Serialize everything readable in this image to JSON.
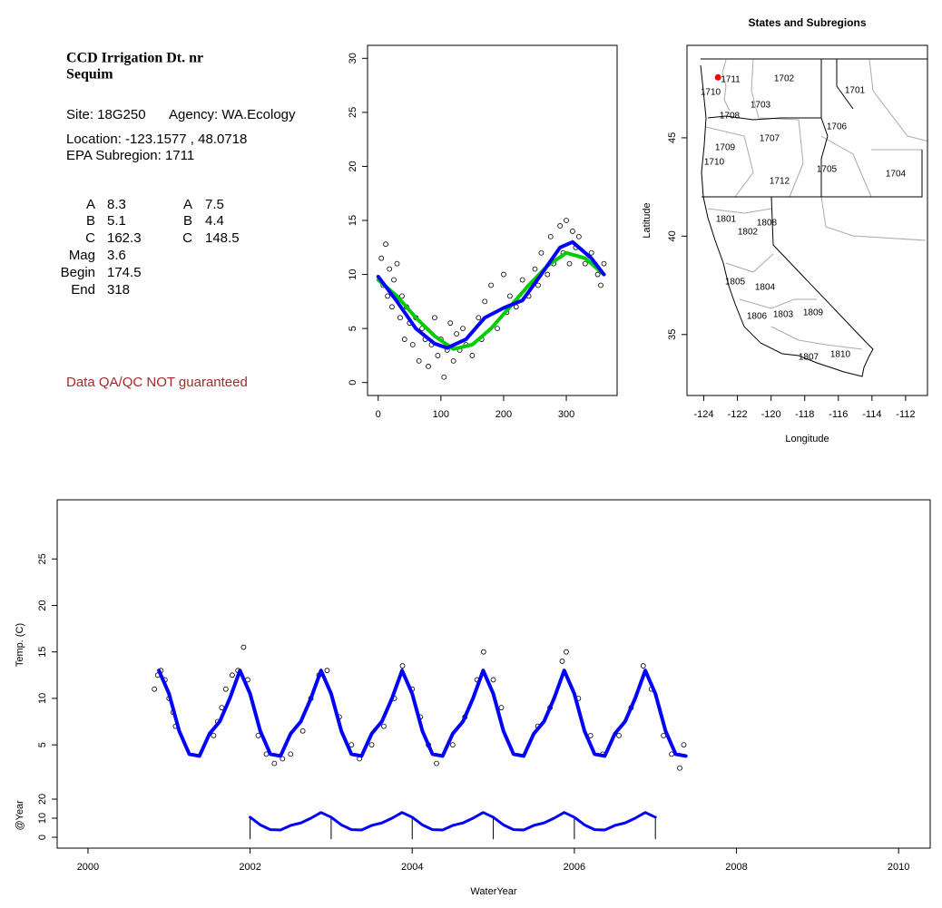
{
  "info": {
    "title": [
      "CCD Irrigation Dt. nr",
      "Sequim"
    ],
    "site": "Site: 18G250",
    "agency": "Agency: WA.Ecology",
    "location": "Location: -123.1577 , 48.0718",
    "subregion": "EPA Subregion: 1711",
    "params": [
      [
        "A",
        "8.3",
        "A",
        "7.5"
      ],
      [
        "B",
        "5.1",
        "B",
        "4.4"
      ],
      [
        "C",
        "162.3",
        "C",
        "148.5"
      ],
      [
        "Mag",
        "3.6"
      ],
      [
        "Begin",
        "174.5"
      ],
      [
        "End",
        "318"
      ]
    ],
    "note": "Data QA/QC NOT guaranteed"
  },
  "chart_data": [
    {
      "type": "scatter",
      "x": [
        5,
        8,
        12,
        15,
        18,
        22,
        25,
        30,
        35,
        38,
        42,
        45,
        50,
        55,
        60,
        65,
        70,
        75,
        80,
        85,
        90,
        95,
        100,
        105,
        110,
        115,
        120,
        125,
        130,
        135,
        140,
        150,
        160,
        165,
        170,
        180,
        190,
        200,
        205,
        210,
        220,
        230,
        240,
        250,
        255,
        260,
        270,
        275,
        280,
        290,
        295,
        300,
        305,
        310,
        315,
        320,
        330,
        340,
        350,
        355,
        360
      ],
      "values": [
        11.5,
        9,
        12.8,
        8,
        10.5,
        7,
        9.5,
        11,
        6,
        8,
        4,
        7,
        5.5,
        3.5,
        6,
        2,
        5,
        4,
        1.5,
        3.5,
        6,
        2.5,
        4,
        0.5,
        3,
        5.5,
        2,
        4.5,
        3,
        5,
        3.5,
        2.5,
        6,
        4,
        7.5,
        9,
        5,
        10,
        6.5,
        8,
        7,
        9.5,
        8,
        10.5,
        9,
        12,
        10,
        13.5,
        11,
        14.5,
        12,
        15,
        11,
        14,
        12.5,
        13.5,
        11,
        12,
        10,
        9,
        11
      ],
      "series": [
        {
          "color": "#00cc00",
          "x": [
            0,
            30,
            60,
            90,
            120,
            150,
            180,
            210,
            240,
            270,
            300,
            330,
            360
          ],
          "values": [
            9.5,
            8.0,
            6.0,
            4.3,
            3.1,
            3.5,
            5.0,
            7.0,
            9.0,
            10.8,
            12.0,
            11.5,
            10.0
          ]
        },
        {
          "color": "#0000ff",
          "x": [
            0,
            30,
            60,
            90,
            110,
            140,
            170,
            200,
            230,
            260,
            290,
            310,
            340,
            360
          ],
          "values": [
            9.8,
            7.5,
            5.0,
            3.6,
            3.2,
            4.0,
            6.0,
            6.9,
            7.6,
            10,
            12.5,
            13,
            11.5,
            10
          ]
        }
      ],
      "xlim": [
        -17,
        381
      ],
      "ylim": [
        -1.2,
        31.2
      ],
      "xticks": [
        0,
        100,
        200,
        300
      ],
      "yticks": [
        0,
        5,
        10,
        15,
        20,
        25,
        30
      ]
    },
    {
      "type": "map",
      "title": "States and Subregions",
      "xlabel": "Longitude",
      "ylabel": "Latitude",
      "xlim": [
        -125,
        -110.7
      ],
      "ylim": [
        31.9,
        49.7
      ],
      "xticks": [
        -124,
        -122,
        -120,
        -118,
        -116,
        -114,
        -112
      ],
      "yticks": [
        35,
        40,
        45
      ],
      "point": {
        "x": -123.1577,
        "y": 48.0718,
        "color": "#ff0000"
      },
      "region_labels": [
        "1711",
        "1702",
        "1701",
        "1710",
        "1703",
        "1708",
        "1706",
        "1707",
        "1709",
        "1710",
        "1705",
        "1704",
        "1712",
        "1801",
        "1808",
        "1802",
        "1805",
        "1804",
        "1809",
        "1803",
        "1806",
        "1810",
        "1807"
      ]
    },
    {
      "type": "timeseries",
      "ylabel": "Temp. (C)",
      "xlim": [
        1999.62,
        2010.39
      ],
      "ylim": [
        1.5,
        30
      ],
      "yticks": [
        5,
        10,
        15,
        20,
        25
      ],
      "x": [
        2000.82,
        2000.86,
        2000.9,
        2000.95,
        2001.0,
        2001.05,
        2001.08,
        2001.55,
        2001.6,
        2001.65,
        2001.7,
        2001.78,
        2001.85,
        2001.92,
        2001.97,
        2002.1,
        2002.2,
        2002.3,
        2002.4,
        2002.5,
        2002.65,
        2002.75,
        2002.85,
        2002.95,
        2003.1,
        2003.25,
        2003.35,
        2003.5,
        2003.65,
        2003.78,
        2003.88,
        2004.0,
        2004.1,
        2004.2,
        2004.3,
        2004.5,
        2004.65,
        2004.8,
        2004.88,
        2005.0,
        2005.1,
        2005.55,
        2005.7,
        2005.85,
        2005.9,
        2006.05,
        2006.2,
        2006.35,
        2006.55,
        2006.7,
        2006.85,
        2006.95,
        2007.1,
        2007.2,
        2007.3,
        2007.35
      ],
      "values": [
        11,
        12.5,
        13,
        12,
        10,
        8.5,
        7,
        6,
        7.5,
        9,
        11,
        12.5,
        13,
        15.5,
        12,
        6,
        4,
        3,
        3.5,
        4,
        6.5,
        10,
        12.5,
        13,
        8,
        5,
        3.5,
        5,
        7,
        10,
        13.5,
        11,
        8,
        5,
        3,
        5,
        8,
        12,
        15,
        12,
        9,
        7,
        9,
        14,
        15,
        10,
        6,
        4,
        6,
        9,
        13.5,
        11,
        6,
        4,
        2.5,
        5
      ],
      "series": [
        {
          "color": "#0000ff",
          "x": [
            2000.875,
            2001,
            2001.125,
            2001.25,
            2001.375,
            2001.5,
            2001.625,
            2001.75,
            2001.875,
            2002,
            2002.125,
            2002.25,
            2002.375,
            2002.5,
            2002.625,
            2002.75,
            2002.875,
            2003,
            2003.125,
            2003.25,
            2003.375,
            2003.5,
            2003.625,
            2003.75,
            2003.875,
            2004,
            2004.125,
            2004.25,
            2004.375,
            2004.5,
            2004.625,
            2004.75,
            2004.875,
            2005,
            2005.125,
            2005.25,
            2005.375,
            2005.5,
            2005.625,
            2005.75,
            2005.875,
            2006,
            2006.125,
            2006.25,
            2006.375,
            2006.5,
            2006.625,
            2006.75,
            2006.875,
            2007,
            2007.125,
            2007.25,
            2007.375
          ],
          "values": [
            13,
            10.5,
            6.5,
            4.0,
            3.8,
            6.2,
            7.5,
            10.0,
            13,
            10.5,
            6.5,
            4.0,
            3.8,
            6.2,
            7.5,
            10.0,
            13,
            10.5,
            6.5,
            4.0,
            3.8,
            6.2,
            7.5,
            10.0,
            13,
            10.5,
            6.5,
            4.0,
            3.8,
            6.2,
            7.5,
            10.0,
            13,
            10.5,
            6.5,
            4.0,
            3.8,
            6.2,
            7.5,
            10.0,
            13,
            10.5,
            6.5,
            4.0,
            3.8,
            6.2,
            7.5,
            10.0,
            13,
            10.5,
            6.5,
            4.0,
            3.8
          ]
        }
      ]
    },
    {
      "type": "line",
      "ylabel": "@Year",
      "xlabel": "WaterYear",
      "xlim": [
        1999.62,
        2010.39
      ],
      "ylim": [
        -2,
        25
      ],
      "xticks": [
        2000,
        2002,
        2004,
        2006,
        2008,
        2010
      ],
      "yticks": [
        0,
        10,
        20
      ],
      "series": [
        {
          "color": "#0000ff",
          "x": [
            2002,
            2002.125,
            2002.25,
            2002.375,
            2002.5,
            2002.625,
            2002.75,
            2002.875,
            2003,
            2003.125,
            2003.25,
            2003.375,
            2003.5,
            2003.625,
            2003.75,
            2003.875,
            2004,
            2004.125,
            2004.25,
            2004.375,
            2004.5,
            2004.625,
            2004.75,
            2004.875,
            2005,
            2005.125,
            2005.25,
            2005.375,
            2005.5,
            2005.625,
            2005.75,
            2005.875,
            2006,
            2006.125,
            2006.25,
            2006.375,
            2006.5,
            2006.625,
            2006.75,
            2006.875,
            2007
          ],
          "values": [
            10.5,
            6.5,
            4.0,
            3.8,
            6.2,
            7.5,
            10.0,
            13,
            10.5,
            6.5,
            4.0,
            3.8,
            6.2,
            7.5,
            10.0,
            13,
            10.5,
            6.5,
            4.0,
            3.8,
            6.2,
            7.5,
            10.0,
            13,
            10.5,
            6.5,
            4.0,
            3.8,
            6.2,
            7.5,
            10.0,
            13,
            10.5,
            6.5,
            4.0,
            3.8,
            6.2,
            7.5,
            10.0,
            13,
            10.5
          ]
        }
      ],
      "year_marks": [
        2002,
        2003,
        2004,
        2005,
        2006,
        2007
      ]
    }
  ]
}
